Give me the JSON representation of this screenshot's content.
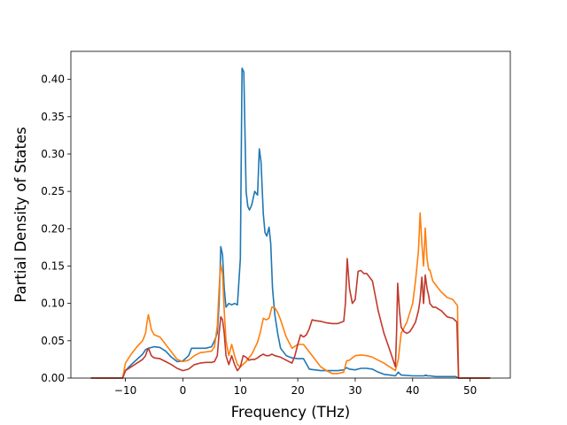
{
  "chart_data": {
    "type": "line",
    "xlabel": "Frequency (THz)",
    "ylabel": "Partial Density of States",
    "xlim": [
      -19.5,
      57.0
    ],
    "ylim": [
      0.0,
      0.4375
    ],
    "xticks": [
      -10,
      0,
      10,
      20,
      30,
      40,
      50
    ],
    "xtick_labels": [
      "−10",
      "0",
      "10",
      "20",
      "30",
      "40",
      "50"
    ],
    "yticks": [
      0.0,
      0.05,
      0.1,
      0.15,
      0.2,
      0.25,
      0.3,
      0.35,
      0.4
    ],
    "ytick_labels": [
      "0.00",
      "0.05",
      "0.10",
      "0.15",
      "0.20",
      "0.25",
      "0.30",
      "0.35",
      "0.40"
    ],
    "grid": false,
    "series": [
      {
        "color": "#1f77b4",
        "x": [
          -16.0,
          -11.0,
          -10.5,
          -10.0,
          -9.0,
          -8.0,
          -7.0,
          -6.5,
          -6.0,
          -5.0,
          -4.0,
          -3.0,
          -2.0,
          -1.0,
          0.0,
          1.0,
          1.5,
          2.0,
          3.0,
          4.0,
          5.0,
          5.5,
          6.0,
          6.3,
          6.6,
          6.9,
          7.2,
          7.5,
          8.0,
          8.5,
          9.0,
          9.5,
          10.0,
          10.3,
          10.6,
          11.0,
          11.3,
          11.6,
          12.0,
          12.5,
          13.0,
          13.3,
          13.6,
          14.0,
          14.3,
          14.6,
          15.0,
          15.3,
          15.6,
          16.0,
          16.5,
          17.0,
          18.0,
          19.0,
          20.0,
          21.0,
          22.0,
          24.0,
          26.0,
          27.0,
          28.0,
          28.5,
          29.0,
          30.0,
          31.0,
          32.0,
          33.0,
          34.0,
          35.0,
          36.0,
          37.0,
          37.5,
          38.0,
          40.0,
          41.0,
          42.0,
          42.3,
          42.6,
          43.0,
          44.0,
          46.0,
          47.5,
          48.0,
          50.0,
          53.5
        ],
        "y": [
          0.0,
          0.0,
          0.0,
          0.01,
          0.018,
          0.025,
          0.032,
          0.038,
          0.04,
          0.042,
          0.041,
          0.036,
          0.028,
          0.022,
          0.023,
          0.03,
          0.04,
          0.04,
          0.04,
          0.04,
          0.042,
          0.05,
          0.06,
          0.1,
          0.176,
          0.165,
          0.12,
          0.095,
          0.1,
          0.098,
          0.1,
          0.098,
          0.16,
          0.415,
          0.41,
          0.25,
          0.23,
          0.225,
          0.232,
          0.25,
          0.245,
          0.307,
          0.29,
          0.22,
          0.195,
          0.19,
          0.202,
          0.18,
          0.12,
          0.085,
          0.06,
          0.04,
          0.03,
          0.027,
          0.026,
          0.026,
          0.012,
          0.01,
          0.01,
          0.01,
          0.011,
          0.014,
          0.012,
          0.011,
          0.013,
          0.013,
          0.012,
          0.008,
          0.005,
          0.004,
          0.003,
          0.008,
          0.004,
          0.003,
          0.003,
          0.003,
          0.004,
          0.003,
          0.003,
          0.002,
          0.002,
          0.002,
          0.0,
          0.0,
          0.0
        ]
      },
      {
        "color": "#ff7f0e",
        "x": [
          -16.0,
          -11.0,
          -10.5,
          -10.0,
          -9.0,
          -8.0,
          -7.0,
          -6.5,
          -6.3,
          -6.0,
          -5.5,
          -5.0,
          -4.0,
          -3.0,
          -2.0,
          -1.0,
          0.0,
          1.0,
          2.0,
          3.0,
          4.0,
          5.0,
          5.5,
          6.0,
          6.3,
          6.6,
          6.9,
          7.2,
          7.5,
          8.0,
          8.5,
          9.0,
          9.5,
          10.0,
          11.0,
          12.0,
          13.0,
          13.5,
          14.0,
          14.5,
          15.0,
          15.5,
          16.0,
          16.5,
          17.0,
          18.0,
          19.0,
          20.0,
          21.0,
          22.0,
          23.0,
          24.0,
          25.0,
          26.0,
          27.0,
          28.0,
          28.5,
          29.0,
          30.0,
          31.0,
          32.0,
          33.0,
          34.0,
          35.0,
          36.0,
          37.0,
          37.5,
          38.0,
          39.0,
          40.0,
          40.5,
          41.0,
          41.3,
          41.6,
          41.9,
          42.2,
          42.5,
          42.8,
          43.0,
          43.5,
          44.0,
          45.0,
          46.0,
          47.0,
          47.8,
          48.0,
          50.0,
          53.5
        ],
        "y": [
          0.0,
          0.0,
          0.0,
          0.02,
          0.032,
          0.042,
          0.05,
          0.06,
          0.072,
          0.085,
          0.065,
          0.058,
          0.055,
          0.045,
          0.035,
          0.025,
          0.022,
          0.024,
          0.03,
          0.034,
          0.035,
          0.036,
          0.042,
          0.07,
          0.12,
          0.152,
          0.14,
          0.09,
          0.05,
          0.03,
          0.045,
          0.03,
          0.018,
          0.015,
          0.022,
          0.032,
          0.048,
          0.062,
          0.08,
          0.078,
          0.08,
          0.095,
          0.094,
          0.088,
          0.078,
          0.055,
          0.04,
          0.045,
          0.045,
          0.035,
          0.025,
          0.015,
          0.01,
          0.006,
          0.006,
          0.008,
          0.023,
          0.024,
          0.03,
          0.031,
          0.03,
          0.028,
          0.024,
          0.02,
          0.015,
          0.01,
          0.025,
          0.06,
          0.075,
          0.1,
          0.13,
          0.17,
          0.221,
          0.18,
          0.15,
          0.201,
          0.16,
          0.145,
          0.145,
          0.13,
          0.125,
          0.115,
          0.108,
          0.105,
          0.097,
          0.0,
          0.0,
          0.0
        ]
      },
      {
        "color": "#c0392b",
        "x": [
          -16.0,
          -11.0,
          -10.5,
          -10.0,
          -9.0,
          -8.0,
          -7.0,
          -6.5,
          -6.3,
          -6.0,
          -5.5,
          -5.0,
          -4.0,
          -3.0,
          -2.0,
          -1.0,
          0.0,
          1.0,
          2.0,
          3.0,
          4.0,
          5.0,
          5.5,
          6.0,
          6.3,
          6.6,
          6.9,
          7.2,
          7.5,
          8.0,
          8.5,
          9.0,
          9.5,
          10.0,
          10.5,
          11.0,
          11.5,
          12.0,
          12.5,
          13.0,
          13.5,
          14.0,
          14.5,
          15.0,
          15.5,
          16.0,
          17.0,
          18.0,
          19.0,
          19.5,
          20.0,
          20.5,
          21.0,
          21.5,
          22.0,
          22.5,
          23.0,
          24.0,
          25.0,
          26.0,
          27.0,
          28.0,
          28.3,
          28.6,
          29.0,
          29.5,
          30.0,
          30.5,
          31.0,
          31.5,
          32.0,
          32.5,
          33.0,
          34.0,
          35.0,
          36.0,
          37.0,
          37.2,
          37.4,
          37.7,
          38.0,
          38.5,
          39.0,
          39.5,
          40.0,
          40.5,
          41.0,
          41.3,
          41.6,
          41.9,
          42.2,
          42.5,
          42.8,
          43.0,
          43.5,
          44.0,
          45.0,
          46.0,
          47.0,
          47.7,
          48.0,
          50.0,
          53.5
        ],
        "y": [
          0.0,
          0.0,
          0.0,
          0.01,
          0.015,
          0.02,
          0.025,
          0.03,
          0.035,
          0.04,
          0.03,
          0.027,
          0.026,
          0.022,
          0.018,
          0.013,
          0.01,
          0.012,
          0.018,
          0.02,
          0.021,
          0.021,
          0.022,
          0.03,
          0.06,
          0.082,
          0.078,
          0.06,
          0.03,
          0.018,
          0.03,
          0.018,
          0.01,
          0.015,
          0.03,
          0.028,
          0.024,
          0.025,
          0.025,
          0.027,
          0.03,
          0.032,
          0.03,
          0.03,
          0.032,
          0.03,
          0.028,
          0.024,
          0.02,
          0.03,
          0.045,
          0.058,
          0.055,
          0.058,
          0.066,
          0.078,
          0.077,
          0.076,
          0.074,
          0.073,
          0.073,
          0.076,
          0.1,
          0.16,
          0.12,
          0.1,
          0.105,
          0.143,
          0.144,
          0.14,
          0.14,
          0.135,
          0.13,
          0.09,
          0.06,
          0.038,
          0.015,
          0.06,
          0.127,
          0.09,
          0.068,
          0.062,
          0.06,
          0.062,
          0.068,
          0.075,
          0.09,
          0.105,
          0.135,
          0.1,
          0.138,
          0.12,
          0.11,
          0.1,
          0.095,
          0.095,
          0.09,
          0.082,
          0.08,
          0.075,
          0.0,
          0.0,
          0.0
        ]
      }
    ]
  }
}
